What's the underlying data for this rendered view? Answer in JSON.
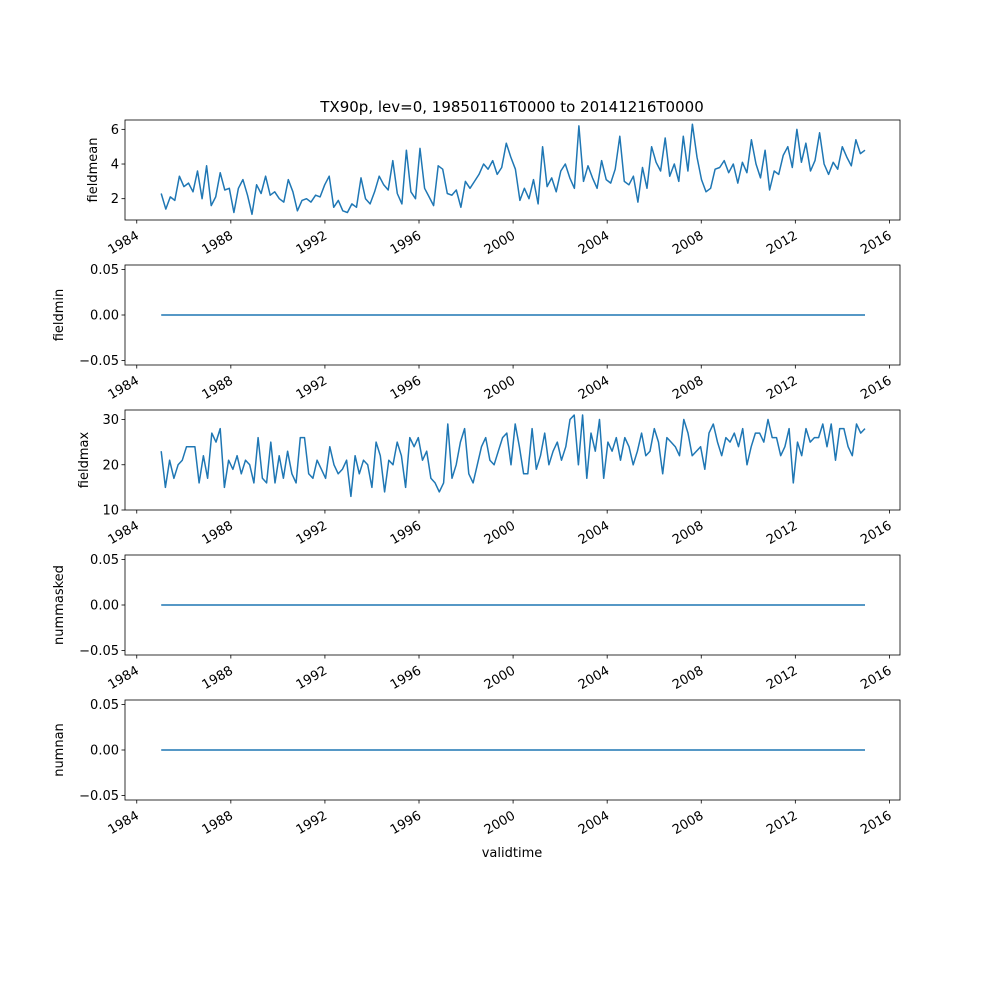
{
  "chart_data": {
    "type": "line",
    "title": "TX90p, lev=0, 19850116T0000 to 20141216T0000",
    "xlabel": "validtime",
    "x_range_years": [
      1985.04,
      2014.96
    ],
    "xlim": [
      1983.5,
      2016.45
    ],
    "x_ticks": [
      1984,
      1988,
      1992,
      1996,
      2000,
      2004,
      2008,
      2012,
      2016
    ],
    "line_color": "#1f77b4",
    "panels": [
      {
        "ylabel": "fieldmean",
        "ylim": [
          0.77,
          6.54
        ],
        "y_ticks": [
          2,
          4,
          6
        ],
        "y_tick_labels": [
          "2",
          "4",
          "6"
        ],
        "values": [
          2.3,
          1.4,
          2.1,
          1.9,
          3.3,
          2.7,
          2.9,
          2.4,
          3.6,
          2.0,
          3.9,
          1.6,
          2.1,
          3.5,
          2.5,
          2.6,
          1.2,
          2.6,
          3.1,
          2.2,
          1.1,
          2.8,
          2.3,
          3.3,
          2.2,
          2.4,
          2.0,
          1.8,
          3.1,
          2.4,
          1.3,
          1.9,
          2.0,
          1.8,
          2.2,
          2.1,
          2.8,
          3.3,
          1.5,
          1.9,
          1.3,
          1.2,
          1.7,
          1.5,
          3.2,
          2.0,
          1.7,
          2.4,
          3.3,
          2.8,
          2.5,
          4.2,
          2.3,
          1.7,
          4.8,
          2.4,
          2.0,
          4.9,
          2.6,
          2.1,
          1.6,
          3.9,
          3.7,
          2.3,
          2.2,
          2.5,
          1.5,
          3.0,
          2.6,
          3.0,
          3.4,
          4.0,
          3.7,
          4.2,
          3.4,
          3.8,
          5.2,
          4.4,
          3.7,
          1.9,
          2.6,
          2.0,
          3.1,
          1.7,
          5.0,
          2.7,
          3.2,
          2.4,
          3.6,
          4.0,
          3.2,
          2.6,
          6.2,
          3.0,
          3.9,
          3.2,
          2.6,
          4.2,
          3.1,
          2.9,
          3.7,
          5.6,
          3.0,
          2.8,
          3.3,
          1.8,
          3.8,
          2.6,
          5.0,
          4.1,
          3.6,
          5.5,
          3.3,
          4.0,
          3.0,
          5.6,
          3.6,
          6.3,
          4.4,
          3.1,
          2.4,
          2.6,
          3.7,
          3.8,
          4.2,
          3.5,
          4.0,
          2.9,
          4.1,
          3.5,
          5.4,
          4.0,
          3.2,
          4.8,
          2.5,
          3.6,
          3.4,
          4.5,
          5.0,
          3.8,
          6.0,
          4.1,
          5.2,
          3.6,
          4.2,
          5.8,
          4.0,
          3.4,
          4.1,
          3.7,
          5.0,
          4.4,
          3.9,
          5.4,
          4.6,
          4.8
        ]
      },
      {
        "ylabel": "fieldmin",
        "ylim": [
          -0.055,
          0.055
        ],
        "y_ticks": [
          -0.05,
          0,
          0.05
        ],
        "y_tick_labels": [
          "−0.05",
          "0.00",
          "0.05"
        ],
        "values": [
          0,
          0
        ]
      },
      {
        "ylabel": "fieldmax",
        "ylim": [
          10,
          32.1
        ],
        "y_ticks": [
          10,
          20,
          30
        ],
        "y_tick_labels": [
          "10",
          "20",
          "30"
        ],
        "values": [
          23,
          15,
          21,
          17,
          20,
          21,
          24,
          24,
          24,
          16,
          22,
          17,
          27,
          25,
          28,
          15,
          21,
          19,
          22,
          18,
          21,
          20,
          16,
          26,
          17,
          16,
          25,
          16,
          22,
          17,
          23,
          18,
          16,
          26,
          26,
          18,
          17,
          21,
          19,
          17,
          24,
          20,
          18,
          19,
          21,
          13,
          22,
          18,
          21,
          20,
          15,
          25,
          22,
          14,
          21,
          20,
          25,
          22,
          15,
          26,
          24,
          26,
          21,
          23,
          17,
          16,
          14,
          16,
          29,
          17,
          20,
          25,
          28,
          18,
          16,
          20,
          24,
          26,
          21,
          20,
          23,
          26,
          27,
          20,
          29,
          24,
          18,
          18,
          28,
          19,
          22,
          27,
          20,
          23,
          25,
          21,
          24,
          30,
          31,
          20,
          31,
          17,
          27,
          23,
          30,
          17,
          25,
          23,
          26,
          21,
          26,
          24,
          20,
          23,
          27,
          22,
          23,
          28,
          25,
          18,
          26,
          25,
          24,
          22,
          30,
          27,
          22,
          23,
          24,
          19,
          27,
          29,
          25,
          22,
          26,
          25,
          27,
          24,
          28,
          20,
          24,
          27,
          27,
          25,
          30,
          26,
          26,
          22,
          24,
          28,
          16,
          25,
          22,
          28,
          25,
          26,
          26,
          29,
          24,
          29,
          21,
          28,
          28,
          24,
          22,
          29,
          27,
          28
        ]
      },
      {
        "ylabel": "nummasked",
        "ylim": [
          -0.055,
          0.055
        ],
        "y_ticks": [
          -0.05,
          0,
          0.05
        ],
        "y_tick_labels": [
          "−0.05",
          "0.00",
          "0.05"
        ],
        "values": [
          0,
          0
        ]
      },
      {
        "ylabel": "numnan",
        "ylim": [
          -0.055,
          0.055
        ],
        "y_ticks": [
          -0.05,
          0,
          0.05
        ],
        "y_tick_labels": [
          "−0.05",
          "0.00",
          "0.05"
        ],
        "values": [
          0,
          0
        ]
      }
    ]
  }
}
